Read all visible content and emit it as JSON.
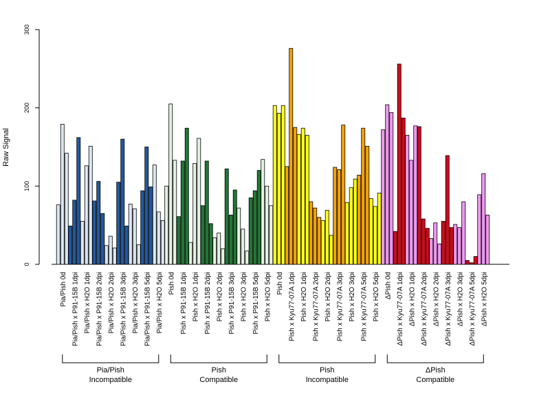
{
  "chart_data": {
    "type": "bar",
    "ylabel": "Raw Signal",
    "ylim": [
      0,
      300
    ],
    "yticks": [
      0,
      100,
      200,
      300
    ],
    "replicates": 3,
    "groups": [
      {
        "label_line1": "Pia/Pish",
        "label_line2": "Incompatible",
        "conditions": [
          {
            "name": "Pia/Pish 0d",
            "color": "#dce6f2",
            "values": [
              76,
              179,
              142
            ]
          },
          {
            "name": "Pia/Pish x P91-15B 1dpi",
            "color": "#1f5aa6",
            "values": [
              49,
              82,
              162
            ]
          },
          {
            "name": "Pia/Pish x H2O 1dpi",
            "color": "#dce6f2",
            "values": [
              55,
              126,
              151
            ]
          },
          {
            "name": "Pia/Pish x P91-15B 2dpi",
            "color": "#1f5aa6",
            "values": [
              81,
              106,
              65
            ]
          },
          {
            "name": "Pia/Pish x H2O 2dpi",
            "color": "#dce6f2",
            "values": [
              24,
              36,
              21
            ]
          },
          {
            "name": "Pia/Pish x P91-15B 3dpi",
            "color": "#1f5aa6",
            "values": [
              105,
              160,
              49
            ]
          },
          {
            "name": "Pia/Pish x H2O 3dpi",
            "color": "#dce6f2",
            "values": [
              77,
              71,
              25
            ]
          },
          {
            "name": "Pia/Pish x P91-15B 5dpi",
            "color": "#1f5aa6",
            "values": [
              94,
              150,
              99
            ]
          },
          {
            "name": "Pia/Pish x H2O 5dpi",
            "color": "#dce6f2",
            "values": [
              127,
              67,
              56
            ]
          }
        ]
      },
      {
        "label_line1": "Pish",
        "label_line2": "Compatible",
        "conditions": [
          {
            "name": "Pish 0d",
            "color": "#e4f2e4",
            "values": [
              100,
              205,
              133
            ]
          },
          {
            "name": "Pish x P91-15B 1dpi",
            "color": "#1e7a33",
            "values": [
              61,
              132,
              174
            ]
          },
          {
            "name": "Pish x H2O 1dpi",
            "color": "#e4f2e4",
            "values": [
              28,
              129,
              161
            ]
          },
          {
            "name": "Pish x P91-15B 2dpi",
            "color": "#1e7a33",
            "values": [
              75,
              132,
              52
            ]
          },
          {
            "name": "Pish x H2O 2dpi",
            "color": "#e4f2e4",
            "values": [
              34,
              40,
              20
            ]
          },
          {
            "name": "Pish x P91-15B 3dpi",
            "color": "#1e7a33",
            "values": [
              122,
              63,
              95
            ]
          },
          {
            "name": "Pish x H2O 3dpi",
            "color": "#e4f2e4",
            "values": [
              72,
              45,
              17
            ]
          },
          {
            "name": "Pish x P91-15B 5dpi",
            "color": "#1e7a33",
            "values": [
              85,
              94,
              120
            ]
          },
          {
            "name": "Pish x H2O 5dpi",
            "color": "#e4f2e4",
            "values": [
              134,
              100,
              75
            ]
          }
        ]
      },
      {
        "label_line1": "Pish",
        "label_line2": "Incompatible",
        "conditions": [
          {
            "name": "Pish 0d",
            "color": "#ffff1a",
            "values": [
              203,
              193,
              203
            ]
          },
          {
            "name": "Pish x Kyu77-07A 1dpi",
            "color": "#f2a20e",
            "values": [
              125,
              276,
              175
            ]
          },
          {
            "name": "Pish x H2O 1dpi",
            "color": "#ffff1a",
            "values": [
              166,
              174,
              165
            ]
          },
          {
            "name": "Pish x Kyu77-07A 2dpi",
            "color": "#f2a20e",
            "values": [
              80,
              72,
              60
            ]
          },
          {
            "name": "Pish x H2O 2dpi",
            "color": "#ffff1a",
            "values": [
              56,
              69,
              37
            ]
          },
          {
            "name": "Pish x Kyu77-07A 3dpi",
            "color": "#f2a20e",
            "values": [
              124,
              121,
              178
            ]
          },
          {
            "name": "Pish x H2O 3dpi",
            "color": "#ffff1a",
            "values": [
              79,
              98,
              109
            ]
          },
          {
            "name": "Pish x Kyu77-07A 5dpi",
            "color": "#f2a20e",
            "values": [
              114,
              174,
              151
            ]
          },
          {
            "name": "Pish x H2O 5dpi",
            "color": "#ffff1a",
            "values": [
              84,
              74,
              91
            ]
          }
        ]
      },
      {
        "label_line1": "ΔPish",
        "label_line2": "Compatible",
        "conditions": [
          {
            "name": "ΔPish 0d",
            "color": "#ee99ee",
            "values": [
              172,
              204,
              194
            ]
          },
          {
            "name": "ΔPish x Kyu77-07A 1dpi",
            "color": "#cc0d1a",
            "values": [
              42,
              256,
              187
            ]
          },
          {
            "name": "ΔPish x H2O 1dpi",
            "color": "#ee99ee",
            "values": [
              165,
              133,
              177
            ]
          },
          {
            "name": "ΔPish x Kyu77-07A 2dpi",
            "color": "#cc0d1a",
            "values": [
              176,
              58,
              46
            ]
          },
          {
            "name": "ΔPish x H2O 2dpi",
            "color": "#ee99ee",
            "values": [
              33,
              53,
              26
            ]
          },
          {
            "name": "ΔPish x Kyu77-07A 3dpi",
            "color": "#cc0d1a",
            "values": [
              55,
              139,
              47
            ]
          },
          {
            "name": "ΔPish x H2O 3dpi",
            "color": "#ee99ee",
            "values": [
              51,
              47,
              80
            ]
          },
          {
            "name": "ΔPish x Kyu77-07A 5dpi",
            "color": "#cc0d1a",
            "values": [
              5,
              2,
              10
            ]
          },
          {
            "name": "ΔPish x H2O 5dpi",
            "color": "#ee99ee",
            "values": [
              89,
              116,
              63
            ]
          }
        ]
      }
    ]
  }
}
